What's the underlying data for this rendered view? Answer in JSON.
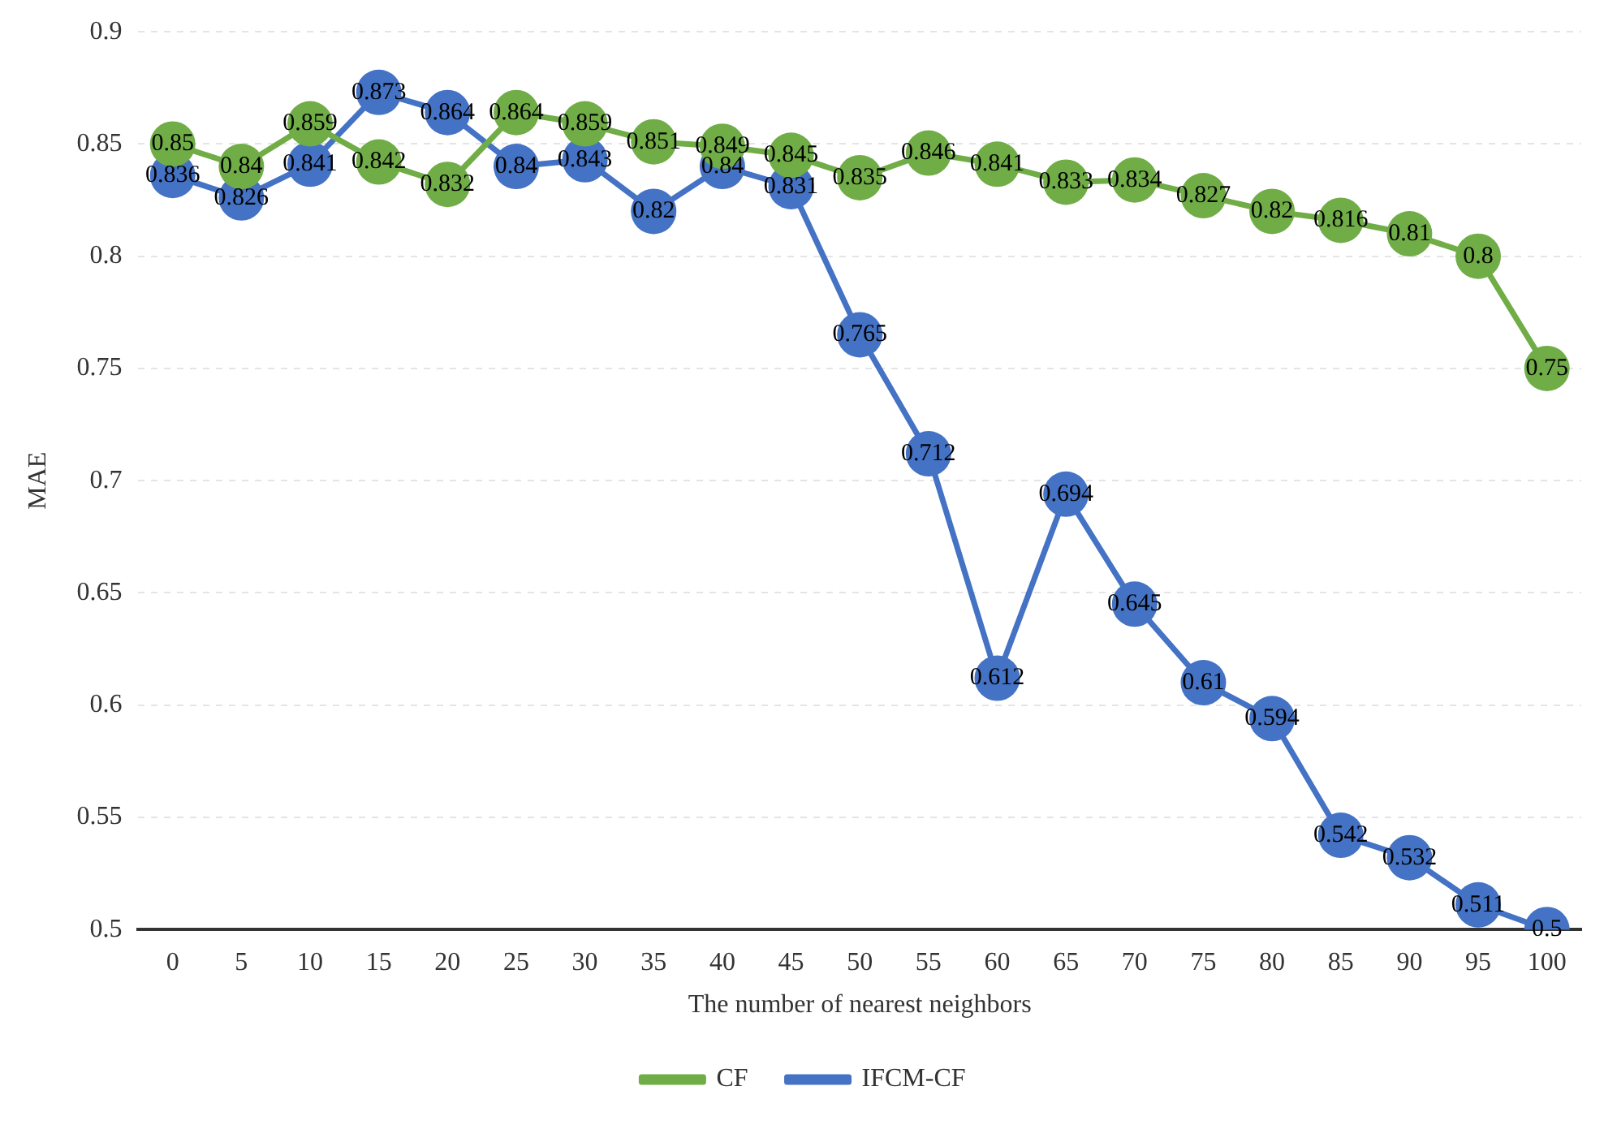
{
  "chart_data": {
    "type": "line",
    "xlabel": "The number of nearest neighbors",
    "ylabel": "MAE",
    "categories": [
      "0",
      "5",
      "10",
      "15",
      "20",
      "25",
      "30",
      "35",
      "40",
      "45",
      "50",
      "55",
      "60",
      "65",
      "70",
      "75",
      "80",
      "85",
      "90",
      "95",
      "100"
    ],
    "series": [
      {
        "name": "CF",
        "color": "#70ad47",
        "values": [
          0.85,
          0.84,
          0.859,
          0.842,
          0.832,
          0.864,
          0.859,
          0.851,
          0.849,
          0.845,
          0.835,
          0.846,
          0.841,
          0.833,
          0.834,
          0.827,
          0.82,
          0.816,
          0.81,
          0.8,
          0.75
        ]
      },
      {
        "name": "IFCM-CF",
        "color": "#4472c4",
        "values": [
          0.836,
          0.826,
          0.841,
          0.873,
          0.864,
          0.84,
          0.843,
          0.82,
          0.84,
          0.831,
          0.765,
          0.712,
          0.612,
          0.694,
          0.645,
          0.61,
          0.594,
          0.542,
          0.532,
          0.511,
          0.5
        ]
      }
    ],
    "ylim": [
      0.5,
      0.9
    ],
    "yticks": [
      0.5,
      0.55,
      0.6,
      0.65,
      0.7,
      0.75,
      0.8,
      0.85,
      0.9
    ],
    "grid": "y",
    "legend": "bottom",
    "marker": "circle",
    "line_style": "solid",
    "data_labels": true
  }
}
